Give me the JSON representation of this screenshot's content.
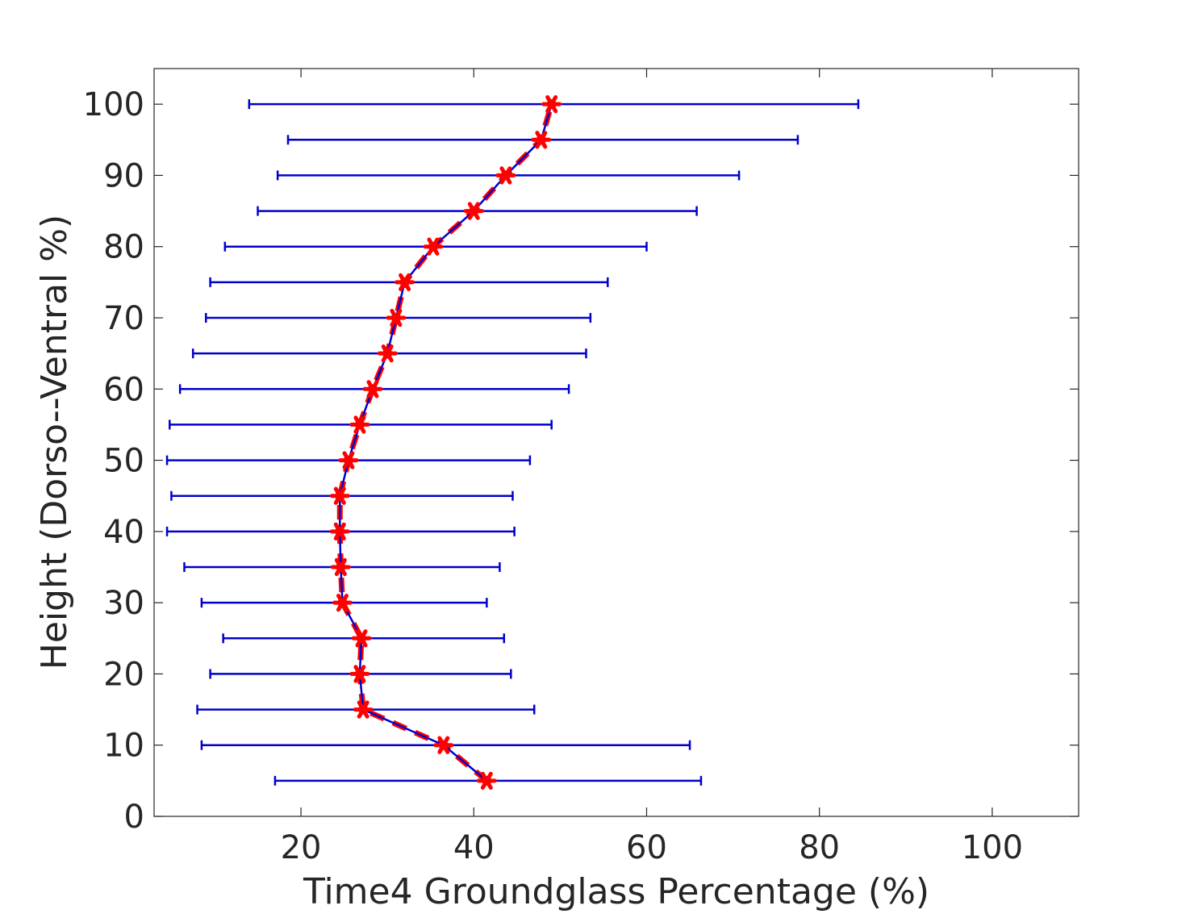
{
  "chart_data": {
    "type": "line",
    "title": "",
    "xlabel": "Time4 Groundglass Percentage (%)",
    "ylabel": "Height (Dorso--Ventral %)",
    "xlim": [
      3,
      110
    ],
    "ylim": [
      0,
      105
    ],
    "xticks": [
      20,
      40,
      60,
      80,
      100
    ],
    "yticks": [
      0,
      10,
      20,
      30,
      40,
      50,
      60,
      70,
      80,
      90,
      100
    ],
    "grid": false,
    "legend": "none",
    "colors": {
      "line": "#0000cc",
      "errorbar": "#0000cc",
      "marker": "#ff0000",
      "axis": "#262626"
    },
    "series": [
      {
        "y": [
          5,
          10,
          15,
          20,
          25,
          30,
          35,
          40,
          45,
          50,
          55,
          60,
          65,
          70,
          75,
          80,
          85,
          90,
          95,
          100
        ],
        "mean": [
          41.5,
          36.5,
          27.2,
          26.8,
          27.0,
          24.8,
          24.6,
          24.5,
          24.5,
          25.5,
          26.8,
          28.3,
          30.0,
          31.0,
          32.0,
          35.3,
          40.0,
          43.7,
          47.8,
          49.0
        ],
        "lower": [
          17.0,
          8.5,
          8.0,
          9.5,
          11.0,
          8.5,
          6.5,
          4.5,
          5.0,
          4.5,
          4.8,
          6.0,
          7.5,
          9.0,
          9.5,
          11.2,
          15.0,
          17.3,
          18.5,
          14.0
        ],
        "upper": [
          66.3,
          65.0,
          47.0,
          44.3,
          43.5,
          41.5,
          43.0,
          44.7,
          44.5,
          46.5,
          49.0,
          51.0,
          53.0,
          53.5,
          55.5,
          60.0,
          65.8,
          70.7,
          77.5,
          84.5
        ]
      }
    ]
  }
}
